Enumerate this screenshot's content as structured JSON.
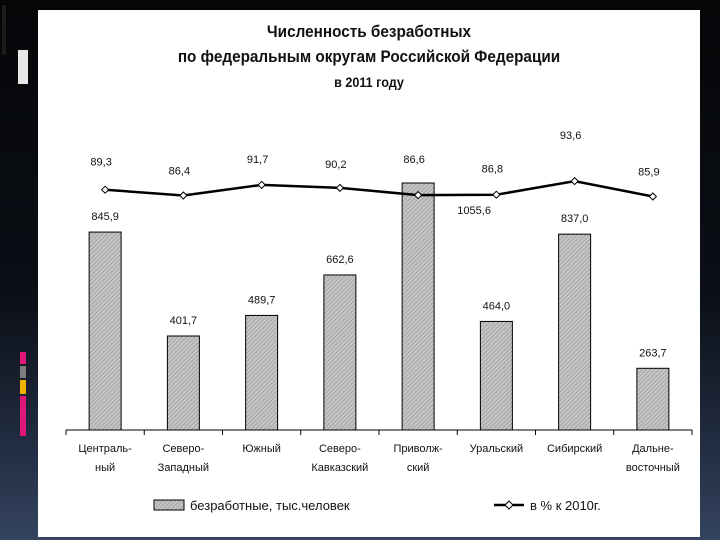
{
  "chart_data": {
    "type": "bar",
    "title": [
      "Численность безработных",
      "по федеральным округам Российской Федерации",
      "в 2011 году"
    ],
    "categories": [
      [
        "Централь-",
        "ный"
      ],
      [
        "Северо-",
        "Западный"
      ],
      [
        "Южный",
        ""
      ],
      [
        "Северо-",
        "Кавказский"
      ],
      [
        "Приволж-",
        "ский"
      ],
      [
        "Уральский",
        ""
      ],
      [
        "Сибирский",
        ""
      ],
      [
        "Дальне-",
        "восточный"
      ]
    ],
    "series": [
      {
        "name": "безработные, тыс.человек",
        "type": "bar",
        "values": [
          845.9,
          401.7,
          489.7,
          662.6,
          1055.6,
          464.0,
          837.0,
          263.7
        ],
        "labels": [
          "845,9",
          "401,7",
          "489,7",
          "662,6",
          "1055,6",
          "464,0",
          "837,0",
          "263,7"
        ]
      },
      {
        "name": "в % к 2010г.",
        "type": "line",
        "values": [
          89.3,
          86.4,
          91.7,
          90.2,
          86.6,
          86.8,
          93.6,
          85.9
        ],
        "labels": [
          "89,3",
          "86,4",
          "91,7",
          "90,2",
          "86,6",
          "86,8",
          "93,6",
          "85,9"
        ]
      }
    ],
    "legend_position": "bottom",
    "grid": false
  },
  "colors": {
    "bar_fill": "#b8b8b8",
    "line": "#000000",
    "slide_bg": "#ffffff",
    "accent_pink": "#e0177a",
    "accent_yellow": "#f0b400",
    "accent_gray": "#7d7d7d"
  }
}
